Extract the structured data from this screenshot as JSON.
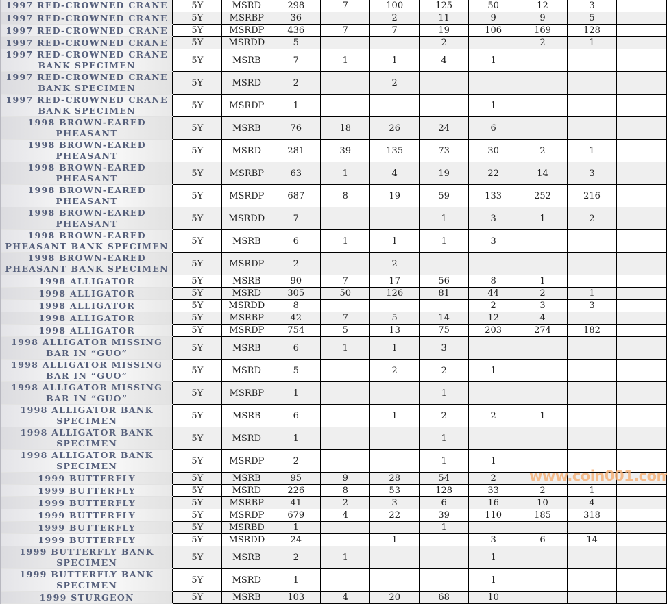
{
  "table": {
    "rows": [
      [
        "1997 RED-CROWNED CRANE",
        "5Y",
        "MSRD",
        "298",
        "7",
        "100",
        "125",
        "50",
        "12",
        "3",
        ""
      ],
      [
        "1997 RED-CROWNED CRANE",
        "5Y",
        "MSRBP",
        "36",
        "",
        "2",
        "11",
        "9",
        "9",
        "5",
        ""
      ],
      [
        "1997 RED-CROWNED CRANE",
        "5Y",
        "MSRDP",
        "436",
        "7",
        "7",
        "19",
        "106",
        "169",
        "128",
        ""
      ],
      [
        "1997 RED-CROWNED CRANE",
        "5Y",
        "MSRDD",
        "5",
        "",
        "",
        "2",
        "",
        "2",
        "1",
        ""
      ],
      [
        "1997 RED-CROWNED CRANE BANK SPECIMEN",
        "5Y",
        "MSRB",
        "7",
        "1",
        "1",
        "4",
        "1",
        "",
        "",
        ""
      ],
      [
        "1997 RED-CROWNED CRANE BANK SPECIMEN",
        "5Y",
        "MSRD",
        "2",
        "",
        "2",
        "",
        "",
        "",
        "",
        ""
      ],
      [
        "1997 RED-CROWNED CRANE BANK SPECIMEN",
        "5Y",
        "MSRDP",
        "1",
        "",
        "",
        "",
        "1",
        "",
        "",
        ""
      ],
      [
        "1998 BROWN-EARED PHEASANT",
        "5Y",
        "MSRB",
        "76",
        "18",
        "26",
        "24",
        "6",
        "",
        "",
        ""
      ],
      [
        "1998 BROWN-EARED PHEASANT",
        "5Y",
        "MSRD",
        "281",
        "39",
        "135",
        "73",
        "30",
        "2",
        "1",
        ""
      ],
      [
        "1998 BROWN-EARED PHEASANT",
        "5Y",
        "MSRBP",
        "63",
        "1",
        "4",
        "19",
        "22",
        "14",
        "3",
        ""
      ],
      [
        "1998 BROWN-EARED PHEASANT",
        "5Y",
        "MSRDP",
        "687",
        "8",
        "19",
        "59",
        "133",
        "252",
        "216",
        ""
      ],
      [
        "1998 BROWN-EARED PHEASANT",
        "5Y",
        "MSRDD",
        "7",
        "",
        "",
        "1",
        "3",
        "1",
        "2",
        ""
      ],
      [
        "1998 BROWN-EARED PHEASANT BANK SPECIMEN",
        "5Y",
        "MSRB",
        "6",
        "1",
        "1",
        "1",
        "3",
        "",
        "",
        ""
      ],
      [
        "1998 BROWN-EARED PHEASANT BANK SPECIMEN",
        "5Y",
        "MSRDP",
        "2",
        "",
        "2",
        "",
        "",
        "",
        "",
        ""
      ],
      [
        "1998 ALLIGATOR",
        "5Y",
        "MSRB",
        "90",
        "7",
        "17",
        "56",
        "8",
        "1",
        "",
        ""
      ],
      [
        "1998 ALLIGATOR",
        "5Y",
        "MSRD",
        "305",
        "50",
        "126",
        "81",
        "44",
        "2",
        "1",
        ""
      ],
      [
        "1998 ALLIGATOR",
        "5Y",
        "MSRDD",
        "8",
        "",
        "",
        "",
        "2",
        "3",
        "3",
        ""
      ],
      [
        "1998 ALLIGATOR",
        "5Y",
        "MSRBP",
        "42",
        "7",
        "5",
        "14",
        "12",
        "4",
        "",
        ""
      ],
      [
        "1998 ALLIGATOR",
        "5Y",
        "MSRDP",
        "754",
        "5",
        "13",
        "75",
        "203",
        "274",
        "182",
        ""
      ],
      [
        "1998 ALLIGATOR MISSING BAR IN “GUO”",
        "5Y",
        "MSRB",
        "6",
        "1",
        "1",
        "3",
        "",
        "",
        "",
        ""
      ],
      [
        "1998 ALLIGATOR MISSING BAR IN “GUO”",
        "5Y",
        "MSRD",
        "5",
        "",
        "2",
        "2",
        "1",
        "",
        "",
        ""
      ],
      [
        "1998 ALLIGATOR MISSING BAR IN “GUO”",
        "5Y",
        "MSRBP",
        "1",
        "",
        "",
        "1",
        "",
        "",
        "",
        ""
      ],
      [
        "1998 ALLIGATOR BANK SPECIMEN",
        "5Y",
        "MSRB",
        "6",
        "",
        "1",
        "2",
        "2",
        "1",
        "",
        ""
      ],
      [
        "1998 ALLIGATOR BANK SPECIMEN",
        "5Y",
        "MSRD",
        "1",
        "",
        "",
        "1",
        "",
        "",
        "",
        ""
      ],
      [
        "1998 ALLIGATOR BANK SPECIMEN",
        "5Y",
        "MSRDP",
        "2",
        "",
        "",
        "1",
        "1",
        "",
        "",
        ""
      ],
      [
        "1999 BUTTERFLY",
        "5Y",
        "MSRB",
        "95",
        "9",
        "28",
        "54",
        "2",
        "",
        "",
        ""
      ],
      [
        "1999 BUTTERFLY",
        "5Y",
        "MSRD",
        "226",
        "8",
        "53",
        "128",
        "33",
        "2",
        "1",
        ""
      ],
      [
        "1999 BUTTERFLY",
        "5Y",
        "MSRBP",
        "41",
        "2",
        "3",
        "6",
        "16",
        "10",
        "4",
        ""
      ],
      [
        "1999 BUTTERFLY",
        "5Y",
        "MSRDP",
        "679",
        "4",
        "22",
        "39",
        "110",
        "185",
        "318",
        ""
      ],
      [
        "1999 BUTTERFLY",
        "5Y",
        "MSRBD",
        "1",
        "",
        "",
        "1",
        "",
        "",
        "",
        ""
      ],
      [
        "1999 BUTTERFLY",
        "5Y",
        "MSRDD",
        "24",
        "",
        "1",
        "",
        "3",
        "6",
        "14",
        ""
      ],
      [
        "1999 BUTTERFLY BANK SPECIMEN",
        "5Y",
        "MSRB",
        "2",
        "1",
        "",
        "",
        "1",
        "",
        "",
        ""
      ],
      [
        "1999 BUTTERFLY BANK SPECIMEN",
        "5Y",
        "MSRD",
        "1",
        "",
        "",
        "",
        "1",
        "",
        "",
        ""
      ],
      [
        "1999 STURGEON",
        "5Y",
        "MSRB",
        "103",
        "4",
        "20",
        "68",
        "10",
        "",
        "",
        ""
      ]
    ]
  },
  "watermark": "www.coin001.com"
}
